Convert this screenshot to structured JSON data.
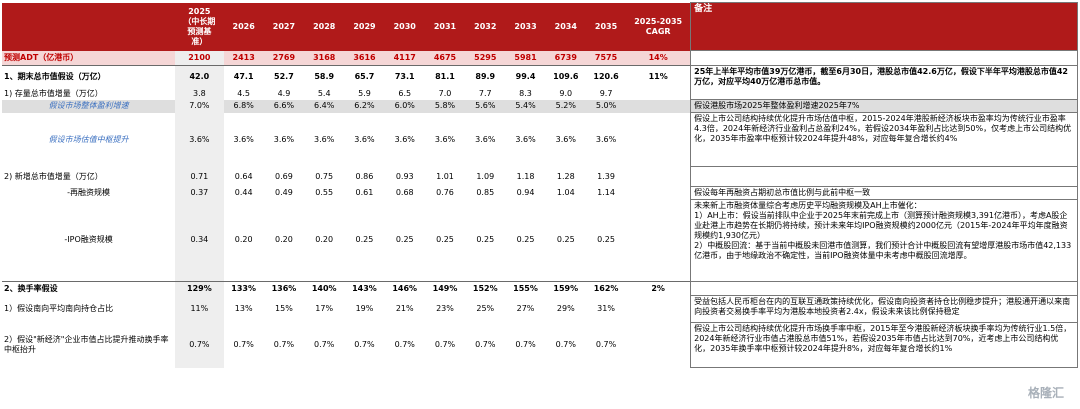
{
  "header": {
    "y2025": "2025\n（中长期\n预测基\n准）",
    "years": [
      "2026",
      "2027",
      "2028",
      "2029",
      "2030",
      "2031",
      "2032",
      "2033",
      "2034",
      "2035"
    ],
    "cagr": "2025-2035\nCAGR",
    "note": "备注"
  },
  "rows": [
    {
      "label": "预测ADT（亿港币）",
      "v2025": "2100",
      "vals": [
        "2413",
        "2769",
        "3168",
        "3616",
        "4117",
        "4675",
        "5295",
        "5981",
        "6739",
        "7575"
      ],
      "cagr": "14%",
      "note": ""
    },
    {
      "label": "1、期末总市值假设（万亿）",
      "v2025": "42.0",
      "vals": [
        "47.1",
        "52.7",
        "58.9",
        "65.7",
        "73.1",
        "81.1",
        "89.9",
        "99.4",
        "109.6",
        "120.6"
      ],
      "cagr": "11%",
      "note": "25年上半年平均市值39万亿港币，截至6月30日，港股总市值42.6万亿，假设下半年平均港股总市值42万亿，对应平均40万亿港币总市值。"
    },
    {
      "label": "1) 存量总市值增量（万亿）",
      "v2025": "3.8",
      "vals": [
        "4.5",
        "4.9",
        "5.4",
        "5.9",
        "6.5",
        "7.0",
        "7.7",
        "8.3",
        "9.0",
        "9.7"
      ],
      "cagr": "",
      "note": ""
    },
    {
      "label": "假设市场整体盈利增速",
      "v2025": "7.0%",
      "vals": [
        "6.8%",
        "6.6%",
        "6.4%",
        "6.2%",
        "6.0%",
        "5.8%",
        "5.6%",
        "5.4%",
        "5.2%",
        "5.0%"
      ],
      "cagr": "",
      "note": "假设港股市场2025年整体盈利增速2025年7%"
    },
    {
      "label": "假设市场估值中枢提升",
      "v2025": "3.6%",
      "vals": [
        "3.6%",
        "3.6%",
        "3.6%",
        "3.6%",
        "3.6%",
        "3.6%",
        "3.6%",
        "3.6%",
        "3.6%",
        "3.6%"
      ],
      "cagr": "",
      "note": "假设上市公司结构持续优化提升市场估值中枢，2015-2024年港股新经济板块市盈率均为传统行业市盈率4.3倍，2024年新经济行业盈利占总盈利24%，若假设2034年盈利占比达到50%，仅考虑上市公司结构优化，2035年市盈率中枢预计较2024年提升48%，对应每年复合增长约4%"
    },
    {
      "label": "2) 新增总市值增量（万亿）",
      "v2025": "0.71",
      "vals": [
        "0.64",
        "0.69",
        "0.75",
        "0.86",
        "0.93",
        "1.01",
        "1.09",
        "1.18",
        "1.28",
        "1.39"
      ],
      "cagr": "",
      "note": ""
    },
    {
      "label": "-再融资规模",
      "v2025": "0.37",
      "vals": [
        "0.44",
        "0.49",
        "0.55",
        "0.61",
        "0.68",
        "0.76",
        "0.85",
        "0.94",
        "1.04",
        "1.14"
      ],
      "cagr": "",
      "note": "假设每年再融资占期初总市值比例与此前中枢一致"
    },
    {
      "label": "-IPO融资规模",
      "v2025": "0.34",
      "vals": [
        "0.20",
        "0.20",
        "0.20",
        "0.25",
        "0.25",
        "0.25",
        "0.25",
        "0.25",
        "0.25",
        "0.25"
      ],
      "cagr": "",
      "note": "未来新上市融资体量综合考虑历史平均融资规模及AH上市催化：\n1）AH上市：假设当前排队中企业于2025年末前完成上市（测算预计融资规模3,391亿港币），考虑A股企业赴港上市趋势在长期仍将持续，预计未来年均IPO融资规模约2000亿元（2015年-2024年平均年度融资规模约1,930亿元）\n2）中概股回流：基于当前中概股未回港市值测算，我们预计合计中概股回流有望增厚港股市场市值42,133亿港币，由于地缘政治不确定性，当前IPO融资体量中未考虑中概股回流增厚。"
    },
    {
      "label": "2、换手率假设",
      "v2025": "129%",
      "vals": [
        "133%",
        "136%",
        "140%",
        "143%",
        "146%",
        "149%",
        "152%",
        "155%",
        "159%",
        "162%"
      ],
      "cagr": "2%",
      "note": ""
    },
    {
      "label": "1）假设南向平均南向持仓占比",
      "v2025": "11%",
      "vals": [
        "13%",
        "15%",
        "17%",
        "19%",
        "21%",
        "23%",
        "25%",
        "27%",
        "29%",
        "31%"
      ],
      "cagr": "",
      "note": "受益包括人民币柜台在内的互联互通政策持续优化，假设南向投资者持仓比例稳步提升；港股通开通以来南向投资者交易换手率平均为港股本地投资者2.4x，假设未来该比例保持稳定"
    },
    {
      "label": "2）假设\"新经济\"企业市值占比提升推动换手率中枢抬升",
      "v2025": "0.7%",
      "vals": [
        "0.7%",
        "0.7%",
        "0.7%",
        "0.7%",
        "0.7%",
        "0.7%",
        "0.7%",
        "0.7%",
        "0.7%",
        "0.7%"
      ],
      "cagr": "",
      "note": "假设上市公司结构持续优化提升市场换手率中枢，2015年至今港股新经济板块换手率均为传统行业1.5倍，2024年新经济行业市值占港股总市值51%，若假设2035年市值占比达到70%，近考虑上市公司结构优化，2035年换手率中枢预计较2024年提升8%，对应每年复合增长约1%"
    }
  ],
  "watermark": "格隆汇",
  "colors": {
    "header_bg": "#b01a1a",
    "adt_bg": "#f5d6d6",
    "adt_text": "#c00000",
    "italic_label": "#3a6fc0",
    "highlight_row": "#dedede"
  }
}
